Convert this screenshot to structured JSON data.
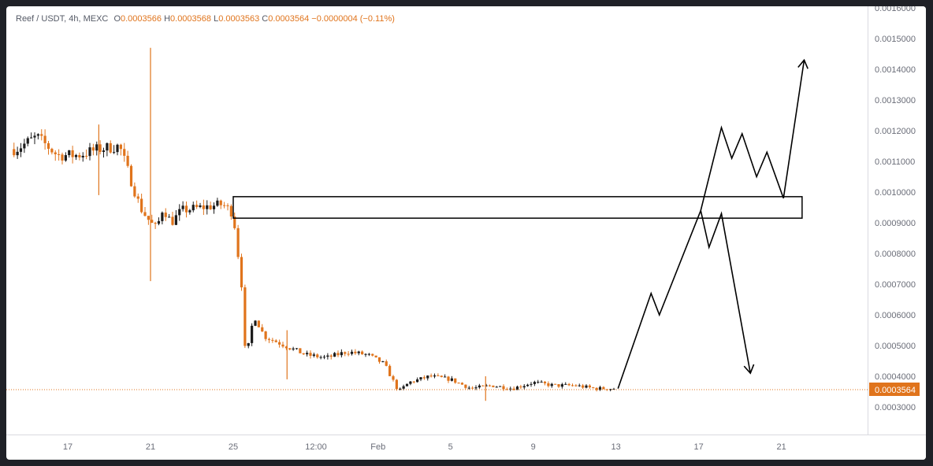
{
  "legend": {
    "symbol": "Reef / USDT, 4h, MEXC",
    "o_label": "O",
    "o_value": "0.0003566",
    "h_label": "H",
    "h_value": "0.0003568",
    "l_label": "L",
    "l_value": "0.0003563",
    "c_label": "C",
    "c_value": "0.0003564",
    "change": "−0.0000004 (−0.11%)"
  },
  "colors": {
    "up": "#1b1b1b",
    "down": "#e0741c",
    "price_tag_bg": "#e0741c",
    "drawing": "#000000",
    "axis_text": "#6a6d78"
  },
  "chart_data": {
    "type": "candlestick",
    "symbol": "Reef / USDT",
    "interval": "4h",
    "exchange": "MEXC",
    "ylim": [
      0.00025,
      0.0016
    ],
    "y_ticks": [
      "0.0003000",
      "0.0004000",
      "0.0005000",
      "0.0006000",
      "0.0007000",
      "0.0008000",
      "0.0009000",
      "0.0010000",
      "0.0011000",
      "0.0012000",
      "0.0013000",
      "0.0014000",
      "0.0015000",
      "0.0016000"
    ],
    "y_tick_values": [
      0.0003,
      0.0004,
      0.0005,
      0.0006,
      0.0007,
      0.0008,
      0.0009,
      0.001,
      0.0011,
      0.0012,
      0.0013,
      0.0014,
      0.0015,
      0.0016
    ],
    "x_ticks": [
      "17",
      "21",
      "25",
      "12:00",
      "Feb",
      "5",
      "9",
      "13",
      "17",
      "21"
    ],
    "x_tick_days": [
      0,
      4,
      8,
      12,
      15,
      18.5,
      22.5,
      26.5,
      30.5,
      34.5
    ],
    "x_origin_date": "Jan 17",
    "last_price": "0.0003564",
    "last_price_value": 0.0003564,
    "price_path": [
      [
        -2.5,
        0.00114
      ],
      [
        -1.5,
        0.00118
      ],
      [
        -0.5,
        0.00112
      ],
      [
        0.5,
        0.00112
      ],
      [
        1.5,
        0.00114
      ],
      [
        2.5,
        0.00115
      ],
      [
        3.0,
        0.00105
      ],
      [
        3.5,
        0.00095
      ],
      [
        4.0,
        0.0009
      ],
      [
        4.3,
        0.00088
      ],
      [
        4.6,
        0.00095
      ],
      [
        5.0,
        0.0009
      ],
      [
        5.5,
        0.00094
      ],
      [
        6.5,
        0.00095
      ],
      [
        7.5,
        0.00096
      ],
      [
        8.0,
        0.00093
      ],
      [
        8.4,
        0.0007
      ],
      [
        8.6,
        0.00045
      ],
      [
        9.0,
        0.0006
      ],
      [
        9.5,
        0.00053
      ],
      [
        10.5,
        0.0005
      ],
      [
        11.5,
        0.00047
      ],
      [
        12.5,
        0.00046
      ],
      [
        13.5,
        0.00048
      ],
      [
        14.5,
        0.00047
      ],
      [
        15.3,
        0.00044
      ],
      [
        16.0,
        0.00035
      ],
      [
        16.5,
        0.00038
      ],
      [
        17.5,
        0.0004
      ],
      [
        18.5,
        0.00039
      ],
      [
        19.5,
        0.00036
      ],
      [
        20.5,
        0.00037
      ],
      [
        21.5,
        0.00036
      ],
      [
        22.5,
        0.00038
      ],
      [
        23.5,
        0.00037
      ],
      [
        24.5,
        0.00037
      ],
      [
        25.5,
        0.00036
      ],
      [
        26.5,
        0.00036
      ]
    ],
    "spikes": [
      {
        "x": 4.0,
        "high": 0.00147,
        "low": 0.00071
      },
      {
        "x": 1.5,
        "high": 0.00122,
        "low": 0.00099
      },
      {
        "x": 10.6,
        "high": 0.00055,
        "low": 0.00039
      },
      {
        "x": 20.2,
        "high": 0.0004,
        "low": 0.00032
      }
    ],
    "zone": {
      "x_start": 8.0,
      "x_end": 35.5,
      "top": 0.000985,
      "bottom": 0.000915
    },
    "projection_up": [
      [
        26.6,
        0.00036
      ],
      [
        28.2,
        0.00067
      ],
      [
        28.6,
        0.0006
      ],
      [
        30.6,
        0.00094
      ],
      [
        31.0,
        0.00082
      ],
      [
        31.6,
        0.00093
      ],
      [
        33.0,
        0.00041
      ]
    ],
    "projection_alt": [
      [
        30.6,
        0.00094
      ],
      [
        31.6,
        0.00121
      ],
      [
        32.1,
        0.00111
      ],
      [
        32.6,
        0.00119
      ],
      [
        33.3,
        0.00105
      ],
      [
        33.8,
        0.00113
      ],
      [
        34.6,
        0.00098
      ],
      [
        35.6,
        0.00143
      ]
    ]
  }
}
